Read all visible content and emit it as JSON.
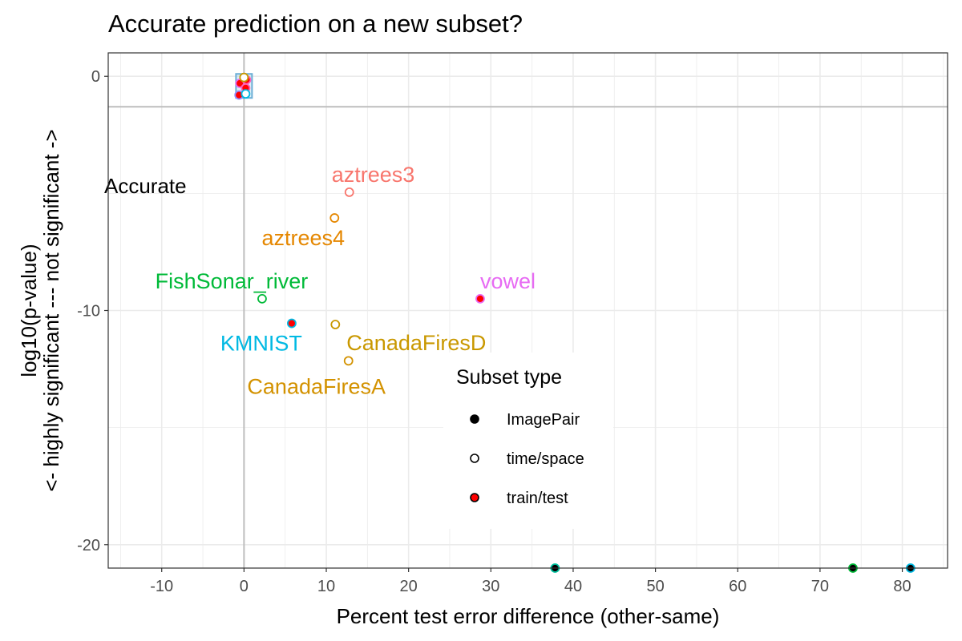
{
  "chart_data": {
    "type": "scatter",
    "title": "Accurate prediction on a new subset?",
    "xlabel": "Percent test error difference (other-same)",
    "ylabel_line1": "log10(p-value)",
    "ylabel_line2": "<- highly significant --- not significant ->",
    "xlim": [
      -16.5,
      85.5
    ],
    "ylim": [
      -21,
      1
    ],
    "xticks": [
      -10,
      0,
      10,
      20,
      30,
      40,
      50,
      60,
      70,
      80
    ],
    "yticks": [
      0,
      -10,
      -20
    ],
    "grid": true,
    "reference_lines": {
      "x": 0,
      "y": -1.3
    },
    "annotation": "Accurate",
    "legend": {
      "title": "Subset type",
      "placement": "inside-bottom-right",
      "items": [
        {
          "label": "ImagePair",
          "shape": "filled"
        },
        {
          "label": "time/space",
          "shape": "open"
        },
        {
          "label": "train/test",
          "shape": "red-filled"
        }
      ]
    },
    "points": [
      {
        "label": "aztrees3",
        "x": 12.8,
        "y": -4.95,
        "type": "time/space",
        "color": "#F8766D"
      },
      {
        "label": "aztrees4",
        "x": 11.0,
        "y": -6.05,
        "type": "time/space",
        "color": "#E58700"
      },
      {
        "label": "FishSonar_river",
        "x": 2.2,
        "y": -9.5,
        "type": "time/space",
        "color": "#00BA38"
      },
      {
        "label": "vowel",
        "x": 28.7,
        "y": -9.5,
        "type": "train/test",
        "color": "#E76BF3"
      },
      {
        "label": "KMNIST",
        "x": 5.8,
        "y": -10.55,
        "type": "train/test",
        "color": "#00B9E3"
      },
      {
        "label": "CanadaFiresD",
        "x": 11.1,
        "y": -10.6,
        "type": "time/space",
        "color": "#C99800"
      },
      {
        "label": "CanadaFiresA",
        "x": 12.7,
        "y": -12.15,
        "type": "time/space",
        "color": "#D39200"
      },
      {
        "label": "",
        "x": 37.8,
        "y": -21,
        "type": "ImagePair",
        "color": "#00C19F"
      },
      {
        "label": "",
        "x": 74.0,
        "y": -21,
        "type": "ImagePair",
        "color": "#00BA38"
      },
      {
        "label": "",
        "x": 81.0,
        "y": -21,
        "type": "ImagePair",
        "color": "#00B9E3"
      }
    ],
    "cluster_points": [
      {
        "x": -0.6,
        "y": -0.8,
        "type": "train/test",
        "color": "#9590FF"
      },
      {
        "x": -0.5,
        "y": -0.3,
        "type": "train/test",
        "color": "#E76BF3"
      },
      {
        "x": 0.3,
        "y": -0.15,
        "type": "train/test",
        "color": "#FF62BC"
      },
      {
        "x": 0.2,
        "y": -0.5,
        "type": "train/test",
        "color": "#FF62BC"
      },
      {
        "x": 0.0,
        "y": -0.05,
        "type": "time/space",
        "color": "#C99800"
      },
      {
        "x": 0.2,
        "y": -0.75,
        "type": "time/space",
        "color": "#00B9E3"
      }
    ]
  }
}
